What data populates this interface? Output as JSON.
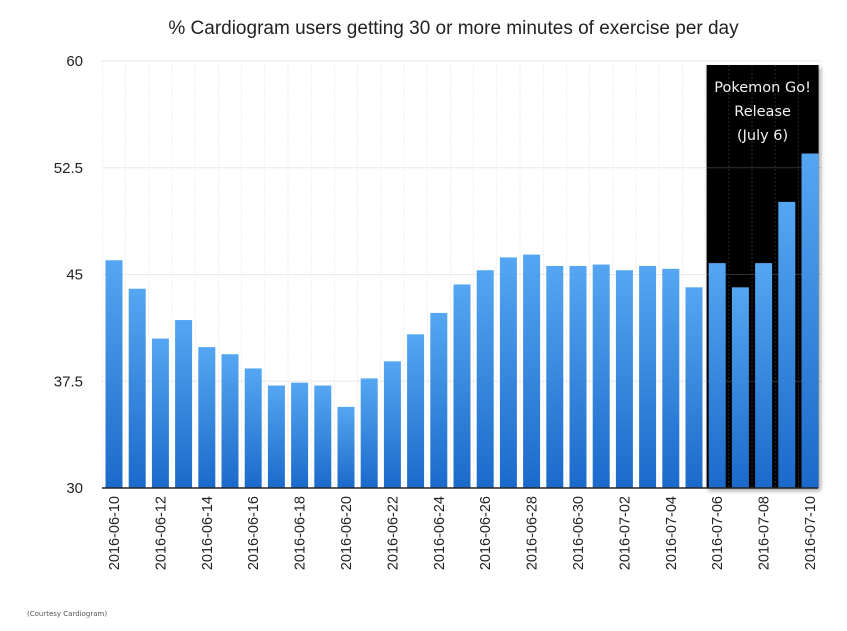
{
  "chart_data": {
    "type": "bar",
    "title": "% Cardiogram users getting 30 or more minutes of exercise per day",
    "xlabel": "",
    "ylabel": "",
    "ylim": [
      30,
      60
    ],
    "yticks": [
      30,
      37.5,
      45,
      52.5,
      60
    ],
    "ytick_labels": [
      "30",
      "37.5",
      "45",
      "52.5",
      "60"
    ],
    "grid": true,
    "legend": null,
    "categories": [
      "2016-06-10",
      "2016-06-11",
      "2016-06-12",
      "2016-06-13",
      "2016-06-14",
      "2016-06-15",
      "2016-06-16",
      "2016-06-17",
      "2016-06-18",
      "2016-06-19",
      "2016-06-20",
      "2016-06-21",
      "2016-06-22",
      "2016-06-23",
      "2016-06-24",
      "2016-06-25",
      "2016-06-26",
      "2016-06-27",
      "2016-06-28",
      "2016-06-29",
      "2016-06-30",
      "2016-07-01",
      "2016-07-02",
      "2016-07-03",
      "2016-07-04",
      "2016-07-05",
      "2016-07-06",
      "2016-07-07",
      "2016-07-08",
      "2016-07-09",
      "2016-07-10"
    ],
    "xtick_labels_shown": [
      "2016-06-10",
      "2016-06-12",
      "2016-06-14",
      "2016-06-16",
      "2016-06-18",
      "2016-06-20",
      "2016-06-22",
      "2016-06-24",
      "2016-06-26",
      "2016-06-28",
      "2016-06-30",
      "2016-07-02",
      "2016-07-04",
      "2016-07-06",
      "2016-07-08",
      "2016-07-10"
    ],
    "values": [
      46.0,
      44.0,
      40.5,
      41.8,
      39.9,
      39.4,
      38.4,
      37.2,
      37.4,
      37.2,
      35.7,
      37.7,
      38.9,
      40.8,
      42.3,
      44.3,
      45.3,
      46.2,
      46.4,
      45.6,
      45.6,
      45.7,
      45.3,
      45.6,
      45.4,
      44.1,
      45.8,
      44.1,
      45.8,
      50.1,
      53.5
    ],
    "annotation": {
      "lines": [
        "Pokemon Go!",
        "Release",
        "(July 6)"
      ],
      "highlight_from": "2016-07-06",
      "highlight_to": "2016-07-10",
      "background": "#000000",
      "text_color": "#f2f2f2"
    },
    "colors": {
      "bar_top": "#55a6f2",
      "bar_bottom": "#1b6acb",
      "grid": "#e8e8e8",
      "axis": "#222222"
    }
  },
  "footer": {
    "credit": "(Courtesy Cardiogram)"
  }
}
